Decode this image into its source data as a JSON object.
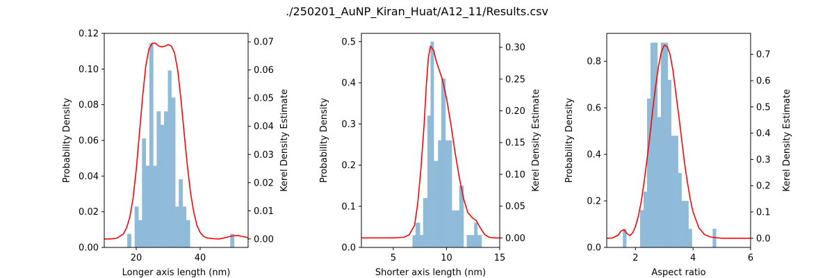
{
  "figure": {
    "title": "./250201_AuNP_Kiran_Huat/A12_11/Results.csv"
  },
  "chart_data": [
    {
      "type": "bar",
      "xlabel": "Longer axis length (nm)",
      "ylabel": "Probability Density",
      "y2label": "Kerel Density Estimate",
      "xlim": [
        10,
        55
      ],
      "ylim": [
        0,
        0.12
      ],
      "y2lim": [
        -0.003,
        0.073
      ],
      "xticks": [
        20,
        40
      ],
      "yticks": [
        0.0,
        0.02,
        0.04,
        0.06,
        0.08,
        0.1,
        0.12
      ],
      "y2ticks": [
        0.0,
        0.01,
        0.02,
        0.03,
        0.04,
        0.05,
        0.06,
        0.07
      ],
      "ytick_labels": [
        "0.00",
        "0.02",
        "0.04",
        "0.06",
        "0.08",
        "0.10",
        "0.12"
      ],
      "y2tick_labels": [
        "0.00",
        "0.01",
        "0.02",
        "0.03",
        "0.04",
        "0.05",
        "0.06",
        "0.07"
      ],
      "bar_color": "#8fbbd9",
      "kde_color": "#ff0000",
      "histogram": {
        "bin_edges": [
          17.2,
          18.4,
          19.5,
          20.7,
          21.8,
          23.0,
          24.1,
          25.3,
          26.4,
          27.6,
          28.7,
          29.9,
          31.0,
          32.2,
          33.3,
          34.5,
          35.6,
          36.8,
          37.9,
          39.1,
          40.2,
          41.4,
          42.5,
          43.7,
          44.8,
          46.0,
          47.1,
          48.3,
          49.4,
          50.6
        ],
        "densities": [
          0.0076,
          0.0,
          0.0229,
          0.0153,
          0.0611,
          0.0458,
          0.1145,
          0.0458,
          0.0763,
          0.0687,
          0.0763,
          0.0992,
          0.084,
          0.0229,
          0.0382,
          0.0229,
          0.0153,
          0.0,
          0.0,
          0.0,
          0.0,
          0.0,
          0.0,
          0.0,
          0.0,
          0.0,
          0.0,
          0.0,
          0.0076
        ]
      },
      "kde": {
        "x": [
          10,
          12,
          14,
          16,
          17,
          18,
          19,
          20,
          21,
          22,
          23,
          24,
          25,
          26,
          27,
          28,
          29,
          30,
          31,
          32,
          33,
          34,
          35,
          36,
          37,
          38,
          39,
          40,
          41,
          42,
          44,
          46,
          48,
          50,
          52,
          54,
          55
        ],
        "y": [
          0.0,
          0.0,
          0.0003,
          0.0018,
          0.004,
          0.0078,
          0.0143,
          0.0245,
          0.0375,
          0.0505,
          0.0615,
          0.0675,
          0.0695,
          0.0695,
          0.0685,
          0.0682,
          0.0685,
          0.069,
          0.0685,
          0.066,
          0.0598,
          0.0495,
          0.0375,
          0.026,
          0.0163,
          0.0095,
          0.0048,
          0.0023,
          0.001,
          0.0004,
          0.0001,
          0.0,
          0.0005,
          0.0011,
          0.0012,
          0.0007,
          0.0004
        ]
      }
    },
    {
      "type": "bar",
      "xlabel": "Shorter axis length (nm)",
      "ylabel": "Probability Density",
      "y2label": "Kerel Density Estimate",
      "xlim": [
        2,
        15
      ],
      "ylim": [
        0,
        0.52
      ],
      "y2lim": [
        -0.015,
        0.322
      ],
      "xticks": [
        5,
        10,
        15
      ],
      "yticks": [
        0.0,
        0.1,
        0.2,
        0.3,
        0.4,
        0.5
      ],
      "y2ticks": [
        0.0,
        0.05,
        0.1,
        0.15,
        0.2,
        0.25,
        0.3
      ],
      "ytick_labels": [
        "0.0",
        "0.1",
        "0.2",
        "0.3",
        "0.4",
        "0.5"
      ],
      "y2tick_labels": [
        "0.00",
        "0.05",
        "0.10",
        "0.15",
        "0.20",
        "0.25",
        "0.30"
      ],
      "bar_color": "#8fbbd9",
      "kde_color": "#ff0000",
      "histogram": {
        "bin_edges": [
          6.8,
          7.1,
          7.5,
          7.8,
          8.2,
          8.5,
          8.8,
          9.2,
          9.5,
          9.9,
          10.2,
          10.5,
          10.9,
          11.2,
          11.6,
          11.9,
          12.2,
          12.6,
          12.9,
          13.3
        ],
        "densities": [
          0.03,
          0.06,
          0.03,
          0.12,
          0.32,
          0.5,
          0.21,
          0.26,
          0.41,
          0.26,
          0.26,
          0.09,
          0.09,
          0.15,
          0.0,
          0.03,
          0.03,
          0.06,
          0.03
        ]
      },
      "kde": {
        "x": [
          2,
          4,
          5,
          6,
          6.5,
          7,
          7.3,
          7.6,
          7.9,
          8.1,
          8.3,
          8.5,
          8.8,
          9.0,
          9.3,
          9.6,
          10.0,
          10.4,
          10.8,
          11.2,
          11.6,
          12.0,
          12.4,
          12.8,
          13.2,
          13.6,
          14.0,
          14.5,
          15
        ],
        "y": [
          0.0,
          0.0,
          0.0,
          0.001,
          0.005,
          0.02,
          0.055,
          0.11,
          0.18,
          0.24,
          0.285,
          0.302,
          0.295,
          0.28,
          0.265,
          0.25,
          0.22,
          0.18,
          0.135,
          0.095,
          0.062,
          0.04,
          0.032,
          0.027,
          0.015,
          0.005,
          0.001,
          0.0,
          0.0
        ]
      }
    },
    {
      "type": "bar",
      "xlabel": "Aspect ratio",
      "ylabel": "Probability Density",
      "y2label": "Kerel Density Estimate",
      "xlim": [
        1,
        6
      ],
      "ylim": [
        0,
        0.92
      ],
      "y2lim": [
        -0.035,
        0.78
      ],
      "xticks": [
        2,
        4,
        6
      ],
      "yticks": [
        0.0,
        0.2,
        0.4,
        0.6,
        0.8
      ],
      "y2ticks": [
        0.0,
        0.1,
        0.2,
        0.3,
        0.4,
        0.5,
        0.6,
        0.7
      ],
      "ytick_labels": [
        "0.0",
        "0.2",
        "0.4",
        "0.6",
        "0.8"
      ],
      "y2tick_labels": [
        "0.0",
        "0.1",
        "0.2",
        "0.3",
        "0.4",
        "0.5",
        "0.6",
        "0.7"
      ],
      "bar_color": "#8fbbd9",
      "kde_color": "#ff0000",
      "histogram": {
        "bin_edges": [
          1.56,
          1.68,
          1.8,
          1.92,
          2.04,
          2.16,
          2.28,
          2.4,
          2.52,
          2.64,
          2.76,
          2.88,
          3.0,
          3.12,
          3.24,
          3.36,
          3.48,
          3.6,
          3.72,
          3.84,
          3.96,
          4.08,
          4.2,
          4.32,
          4.44,
          4.56,
          4.68,
          4.8
        ],
        "densities": [
          0.08,
          0.0,
          0.0,
          0.0,
          0.0,
          0.16,
          0.24,
          0.64,
          0.88,
          0.88,
          0.56,
          0.88,
          0.88,
          0.72,
          0.48,
          0.48,
          0.32,
          0.2,
          0.2,
          0.08,
          0.0,
          0.0,
          0.0,
          0.0,
          0.0,
          0.0,
          0.08
        ]
      },
      "kde": {
        "x": [
          1.0,
          1.2,
          1.4,
          1.5,
          1.6,
          1.7,
          1.8,
          1.9,
          2.0,
          2.1,
          2.2,
          2.3,
          2.4,
          2.5,
          2.6,
          2.7,
          2.8,
          2.9,
          3.0,
          3.1,
          3.2,
          3.3,
          3.4,
          3.5,
          3.6,
          3.7,
          3.8,
          3.9,
          4.0,
          4.2,
          4.4,
          4.6,
          4.8,
          5.0,
          5.5,
          6.0
        ],
        "y": [
          0.0,
          0.001,
          0.012,
          0.028,
          0.032,
          0.018,
          0.01,
          0.02,
          0.045,
          0.085,
          0.14,
          0.215,
          0.3,
          0.39,
          0.49,
          0.58,
          0.655,
          0.71,
          0.735,
          0.73,
          0.7,
          0.64,
          0.555,
          0.47,
          0.38,
          0.29,
          0.215,
          0.15,
          0.1,
          0.04,
          0.014,
          0.005,
          0.002,
          0.0,
          0.0,
          0.0
        ]
      }
    }
  ]
}
